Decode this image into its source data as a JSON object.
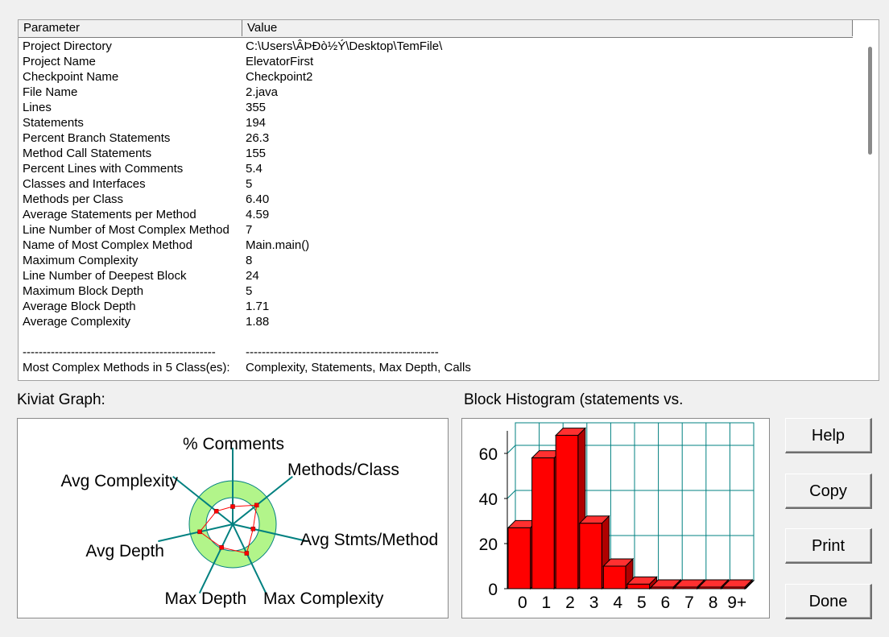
{
  "table": {
    "columns": [
      "Parameter",
      "Value"
    ],
    "rows": [
      [
        "Project Directory",
        "C:\\Users\\ÂÞÐò½Ý\\Desktop\\TemFile\\"
      ],
      [
        "Project Name",
        "ElevatorFirst"
      ],
      [
        "Checkpoint Name",
        "Checkpoint2"
      ],
      [
        "File Name",
        "2.java"
      ],
      [
        "Lines",
        "355"
      ],
      [
        "Statements",
        "194"
      ],
      [
        "Percent Branch Statements",
        "26.3"
      ],
      [
        "Method Call Statements",
        "155"
      ],
      [
        "Percent Lines with Comments",
        "5.4"
      ],
      [
        "Classes and Interfaces",
        "5"
      ],
      [
        "Methods per Class",
        "6.40"
      ],
      [
        "Average Statements per Method",
        "4.59"
      ],
      [
        "Line Number of Most Complex Method",
        "7"
      ],
      [
        "Name of Most Complex Method",
        "Main.main()"
      ],
      [
        "Maximum Complexity",
        "8"
      ],
      [
        "Line Number of Deepest Block",
        "24"
      ],
      [
        "Maximum Block Depth",
        "5"
      ],
      [
        "Average Block Depth",
        "1.71"
      ],
      [
        "Average Complexity",
        "1.88"
      ],
      [
        "",
        ""
      ],
      [
        "------------------------------------------------",
        "------------------------------------------------"
      ],
      [
        "Most Complex Methods in 5 Class(es):",
        "Complexity, Statements, Max Depth, Calls"
      ]
    ]
  },
  "kiviat": {
    "title": "Kiviat Graph:",
    "axes": [
      "% Comments",
      "Methods/Class",
      "Avg Stmts/Method",
      "Max Complexity",
      "Max Depth",
      "Avg Depth",
      "Avg Complexity"
    ],
    "ring_color": "#b2f58a",
    "line_color": "#ff0000"
  },
  "histogram": {
    "title": "Block Histogram (statements vs.",
    "bar_color": "#ff0000",
    "grid_color": "#008080"
  },
  "chart_data": {
    "type": "bar",
    "categories": [
      "0",
      "1",
      "2",
      "3",
      "4",
      "5",
      "6",
      "7",
      "8",
      "9+"
    ],
    "values": [
      27,
      58,
      68,
      29,
      10,
      2,
      0,
      0,
      0,
      0
    ],
    "ylim": [
      0,
      70
    ],
    "yticks": [
      "0",
      "20",
      "40",
      "60"
    ],
    "title": "Block Histogram (statements vs.",
    "grid": true
  },
  "buttons": {
    "help": "Help",
    "copy": "Copy",
    "print": "Print",
    "done": "Done"
  }
}
